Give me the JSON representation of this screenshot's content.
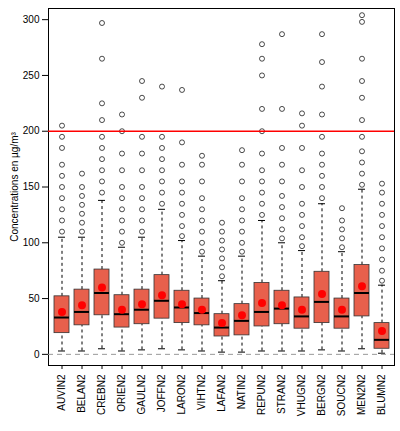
{
  "chart_data": {
    "type": "boxplot",
    "y_label": "Concentrations en µg/m³",
    "categories": [
      "AUVIN2",
      "BELAN2",
      "CREBN2",
      "ORIEN2",
      "GAULN2",
      "JOFFN2",
      "LARON2",
      "VIHTN2",
      "LAFAN2",
      "NATIN2",
      "REPUN2",
      "STRAN2",
      "VHUGN2",
      "BERGN2",
      "SOUCN2",
      "MEN2N2",
      "BLUMN2"
    ],
    "whisker_low": [
      3,
      3,
      5,
      3,
      4,
      5,
      4,
      3,
      2,
      2,
      3,
      3,
      3,
      4,
      3,
      5,
      1
    ],
    "q1": [
      19,
      26,
      35,
      24,
      27,
      32,
      28,
      26,
      16,
      17,
      25,
      27,
      23,
      28,
      23,
      34,
      5
    ],
    "median": [
      33,
      38,
      55,
      36,
      40,
      48,
      42,
      37,
      24,
      30,
      38,
      41,
      34,
      47,
      34,
      55,
      13
    ],
    "q3": [
      52,
      58,
      76,
      53,
      58,
      71,
      57,
      50,
      36,
      45,
      64,
      57,
      51,
      74,
      50,
      80,
      28
    ],
    "whisker_high": [
      105,
      105,
      138,
      96,
      105,
      130,
      102,
      88,
      66,
      88,
      120,
      100,
      93,
      135,
      92,
      148,
      62
    ],
    "mean": [
      38,
      44,
      60,
      40,
      45,
      53,
      45,
      40,
      28,
      35,
      46,
      44,
      40,
      54,
      40,
      61,
      21
    ],
    "outliers": [
      [
        110,
        120,
        130,
        140,
        150,
        160,
        170,
        185,
        195,
        205
      ],
      [
        110,
        118,
        126,
        134,
        142,
        150,
        162
      ],
      [
        145,
        155,
        165,
        175,
        185,
        195,
        210,
        225,
        265,
        297
      ],
      [
        100,
        110,
        120,
        130,
        140,
        150,
        165,
        180,
        200,
        215
      ],
      [
        110,
        120,
        130,
        140,
        150,
        165,
        180,
        195,
        230,
        245
      ],
      [
        135,
        145,
        155,
        165,
        175,
        185,
        195,
        240
      ],
      [
        106,
        115,
        125,
        135,
        145,
        155,
        170,
        190,
        237
      ],
      [
        92,
        100,
        110,
        120,
        130,
        140,
        155,
        170,
        178
      ],
      [
        70,
        78,
        86,
        94,
        102,
        110,
        118
      ],
      [
        92,
        100,
        110,
        120,
        130,
        140,
        155,
        170,
        183
      ],
      [
        125,
        135,
        145,
        155,
        165,
        180,
        200,
        220,
        250,
        265,
        278
      ],
      [
        104,
        112,
        122,
        132,
        142,
        155,
        170,
        185,
        220,
        287
      ],
      [
        97,
        105,
        115,
        125,
        135,
        150,
        165,
        185,
        205,
        216
      ],
      [
        140,
        150,
        160,
        170,
        180,
        195,
        215,
        240,
        262,
        287
      ],
      [
        96,
        104,
        112,
        120,
        131
      ],
      [
        152,
        162,
        172,
        182,
        195,
        210,
        230,
        245,
        265,
        298,
        304
      ],
      [
        66,
        75,
        85,
        95,
        105,
        115,
        125,
        135,
        145,
        153
      ]
    ],
    "color": "#e8604c",
    "mean_color": "#ff0000",
    "reference_lines": [
      {
        "value": 200,
        "color": "#ff0000",
        "line_style": "solid"
      },
      {
        "value": 0,
        "color": "#999999",
        "line_style": "dashed"
      }
    ],
    "ylim": [
      -10,
      310
    ],
    "yticks": [
      0,
      50,
      100,
      150,
      200,
      250,
      300
    ]
  }
}
